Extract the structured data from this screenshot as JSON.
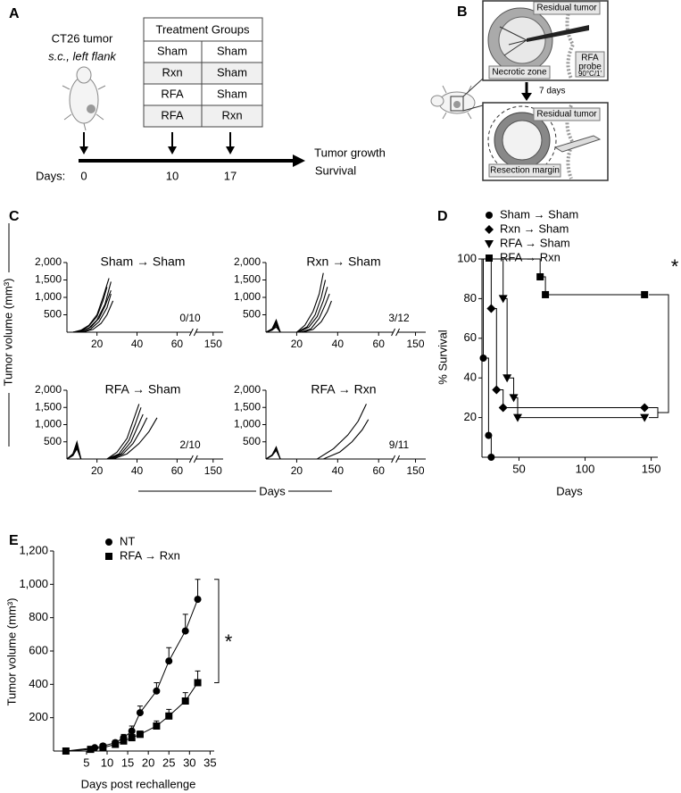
{
  "panel_a": {
    "label": "A",
    "tumor": "CT26 tumor",
    "site": "s.c., left flank",
    "table": {
      "header": "Treatment Groups",
      "rows": [
        [
          "Sham",
          "Sham"
        ],
        [
          "Rxn",
          "Sham"
        ],
        [
          "RFA",
          "Sham"
        ],
        [
          "RFA",
          "Rxn"
        ]
      ]
    },
    "days_label": "Days:",
    "days": [
      0,
      10,
      17
    ],
    "outcomes": [
      "Tumor growth",
      "Survival"
    ]
  },
  "panel_b": {
    "label": "B",
    "residual_top": "Residual tumor",
    "probe": "RFA",
    "probe_2": "probe",
    "probe_setting": "90°C/1'",
    "necrotic": "Necrotic zone",
    "interval": "7 days",
    "residual_bottom": "Residual tumor",
    "margin": "Resection margin"
  },
  "panel_c": {
    "label": "C",
    "ylabel": "Tumor volume (mm³)",
    "xlabel": "Days"
  },
  "panel_d": {
    "label": "D"
  },
  "panel_e": {
    "label": "E"
  },
  "chart_data": [
    {
      "type": "line",
      "title": "Sham → Sham",
      "annotation": "0/10",
      "xlim": [
        5,
        155
      ],
      "axis_break": [
        68,
        140
      ],
      "xticks": [
        20,
        40,
        60,
        150
      ],
      "ylim": [
        0,
        2000
      ],
      "yticks": [
        500,
        {
          "value": 1000,
          "label": "1,000"
        },
        {
          "value": 1500,
          "label": "1,500"
        },
        {
          "value": 2000,
          "label": "2,000"
        }
      ],
      "series": [
        {
          "color": "#000",
          "x": [
            8,
            12,
            16,
            20,
            23,
            26
          ],
          "values": [
            0,
            60,
            200,
            500,
            1000,
            1550
          ]
        },
        {
          "color": "#000",
          "x": [
            8,
            12,
            16,
            20,
            23,
            25
          ],
          "values": [
            0,
            40,
            180,
            450,
            900,
            1300
          ]
        },
        {
          "color": "#000",
          "x": [
            8,
            12,
            16,
            20,
            24,
            27
          ],
          "values": [
            0,
            30,
            120,
            350,
            800,
            1450
          ]
        },
        {
          "color": "#000",
          "x": [
            8,
            13,
            17,
            21,
            24,
            27
          ],
          "values": [
            0,
            50,
            150,
            400,
            750,
            1200
          ]
        },
        {
          "color": "#000",
          "x": [
            8,
            13,
            17,
            21,
            25,
            27
          ],
          "values": [
            0,
            20,
            100,
            300,
            700,
            1100
          ]
        },
        {
          "color": "#000",
          "x": [
            10,
            14,
            18,
            22,
            25,
            28
          ],
          "values": [
            0,
            20,
            80,
            250,
            500,
            900
          ]
        }
      ]
    },
    {
      "type": "line",
      "title": "Rxn → Sham",
      "annotation": "3/12",
      "xlim": [
        5,
        155
      ],
      "axis_break": [
        68,
        140
      ],
      "xticks": [
        20,
        40,
        60,
        150
      ],
      "ylim": [
        0,
        2000
      ],
      "yticks": [
        500,
        {
          "value": 1000,
          "label": "1,000"
        },
        {
          "value": 1500,
          "label": "1,500"
        },
        {
          "value": 2000,
          "label": "2,000"
        }
      ],
      "series": [
        {
          "color": "#000",
          "x": [
            5,
            8,
            10,
            12,
            20,
            24,
            28,
            31,
            33
          ],
          "values": [
            0,
            100,
            350,
            0,
            0,
            200,
            600,
            1100,
            1700
          ]
        },
        {
          "color": "#000",
          "x": [
            5,
            8,
            10,
            12,
            20,
            25,
            29,
            32,
            34
          ],
          "values": [
            0,
            80,
            300,
            0,
            0,
            150,
            500,
            1000,
            1500
          ]
        },
        {
          "color": "#000",
          "x": [
            5,
            8,
            10,
            12,
            21,
            26,
            30,
            33,
            35
          ],
          "values": [
            0,
            80,
            250,
            0,
            0,
            150,
            450,
            900,
            1300
          ]
        },
        {
          "color": "#000",
          "x": [
            5,
            8,
            10,
            12,
            22,
            27,
            31,
            34,
            36
          ],
          "values": [
            0,
            60,
            200,
            0,
            0,
            100,
            400,
            800,
            1100
          ]
        },
        {
          "color": "#000",
          "x": [
            5,
            8,
            10,
            12,
            23,
            28,
            32,
            35,
            37
          ],
          "values": [
            0,
            60,
            150,
            0,
            0,
            80,
            300,
            600,
            900
          ]
        }
      ]
    },
    {
      "type": "line",
      "title": "RFA → Sham",
      "annotation": "2/10",
      "xlim": [
        5,
        155
      ],
      "axis_break": [
        68,
        140
      ],
      "xticks": [
        20,
        40,
        60,
        150
      ],
      "ylim": [
        0,
        2000
      ],
      "yticks": [
        500,
        {
          "value": 1000,
          "label": "1,000"
        },
        {
          "value": 1500,
          "label": "1,500"
        },
        {
          "value": 2000,
          "label": "2,000"
        }
      ],
      "series": [
        {
          "color": "#000",
          "x": [
            5,
            8,
            10,
            12,
            25,
            30,
            35,
            38,
            41
          ],
          "values": [
            0,
            150,
            500,
            0,
            0,
            200,
            600,
            1100,
            1600
          ]
        },
        {
          "color": "#000",
          "x": [
            5,
            8,
            10,
            12,
            25,
            31,
            36,
            39,
            42
          ],
          "values": [
            0,
            150,
            450,
            0,
            0,
            150,
            550,
            1000,
            1500
          ]
        },
        {
          "color": "#000",
          "x": [
            5,
            8,
            10,
            12,
            26,
            32,
            37,
            40,
            43
          ],
          "values": [
            0,
            120,
            400,
            0,
            0,
            150,
            500,
            900,
            1300
          ]
        },
        {
          "color": "#000",
          "x": [
            5,
            8,
            10,
            12,
            27,
            33,
            38,
            42,
            45
          ],
          "values": [
            0,
            100,
            350,
            0,
            0,
            150,
            450,
            850,
            1200
          ]
        },
        {
          "color": "#000",
          "x": [
            5,
            8,
            10,
            12,
            28,
            35,
            41,
            46,
            50
          ],
          "values": [
            0,
            100,
            300,
            0,
            0,
            150,
            450,
            800,
            1200
          ]
        }
      ]
    },
    {
      "type": "line",
      "title": "RFA → Rxn",
      "annotation": "9/11",
      "xlim": [
        5,
        155
      ],
      "axis_break": [
        68,
        140
      ],
      "xticks": [
        20,
        40,
        60,
        150
      ],
      "ylim": [
        0,
        2000
      ],
      "yticks": [
        500,
        {
          "value": 1000,
          "label": "1,000"
        },
        {
          "value": 1500,
          "label": "1,500"
        },
        {
          "value": 2000,
          "label": "2,000"
        }
      ],
      "series": [
        {
          "color": "#000",
          "x": [
            5,
            8,
            10,
            12,
            30,
            38,
            45,
            50,
            54
          ],
          "values": [
            0,
            120,
            350,
            0,
            0,
            300,
            700,
            1100,
            1600
          ]
        },
        {
          "color": "#000",
          "x": [
            5,
            8,
            10,
            12,
            33,
            41,
            47,
            52,
            55
          ],
          "values": [
            0,
            100,
            300,
            0,
            0,
            200,
            500,
            850,
            1150
          ]
        },
        {
          "color": "#000",
          "x": [
            5,
            8,
            10,
            12,
            40
          ],
          "values": [
            0,
            100,
            250,
            0,
            0
          ]
        }
      ]
    },
    {
      "type": "step",
      "ylabel": "% Survival",
      "xlabel": "Days",
      "annotation": "*",
      "legend": "upper right",
      "xlim": [
        22,
        155
      ],
      "xticks": [
        50,
        100,
        150
      ],
      "ylim": [
        0,
        100
      ],
      "yticks": [
        20,
        40,
        60,
        80,
        100
      ],
      "series": [
        {
          "name": "Sham → Sham",
          "marker": "circle",
          "color": "#000",
          "x": [
            23,
            27,
            29
          ],
          "values": [
            50,
            11,
            0
          ]
        },
        {
          "name": "Rxn → Sham",
          "marker": "diamond",
          "color": "#000",
          "x": [
            29,
            33,
            38,
            145
          ],
          "values": [
            75,
            34,
            25,
            25
          ]
        },
        {
          "name": "RFA → Sham",
          "marker": "triangle-down",
          "color": "#000",
          "x": [
            38,
            41,
            46,
            49,
            145
          ],
          "values": [
            80,
            40,
            30,
            20,
            20
          ]
        },
        {
          "name": "RFA → Rxn",
          "marker": "square",
          "color": "#000",
          "x": [
            66,
            70,
            145
          ],
          "values": [
            91,
            82,
            82
          ]
        }
      ]
    },
    {
      "type": "errorbar_line",
      "xlabel": "Days post rechallenge",
      "ylabel": "Tumor volume (mm³)",
      "annotation": "*",
      "legend": "upper left",
      "xlim": [
        -3,
        36
      ],
      "xticks": [
        5,
        10,
        15,
        20,
        25,
        30,
        35
      ],
      "ylim": [
        0,
        1200
      ],
      "yticks": [
        200,
        400,
        600,
        800,
        {
          "value": 1000,
          "label": "1,000"
        },
        {
          "value": 1200,
          "label": "1,200"
        }
      ],
      "series": [
        {
          "name": "NT",
          "marker": "circle",
          "color": "#000",
          "x": [
            0,
            7,
            9,
            12,
            14,
            16,
            18,
            22,
            25,
            29,
            32
          ],
          "values": [
            0,
            20,
            30,
            50,
            80,
            120,
            230,
            360,
            540,
            720,
            910
          ],
          "errors": [
            0,
            10,
            15,
            15,
            20,
            30,
            40,
            50,
            80,
            100,
            120
          ]
        },
        {
          "name": "RFA → Rxn",
          "marker": "square",
          "color": "#000",
          "x": [
            0,
            6,
            9,
            12,
            14,
            16,
            18,
            22,
            25,
            29,
            32
          ],
          "values": [
            0,
            10,
            20,
            40,
            60,
            80,
            100,
            150,
            210,
            300,
            410
          ],
          "errors": [
            0,
            5,
            10,
            15,
            15,
            20,
            20,
            30,
            40,
            50,
            70
          ]
        }
      ]
    }
  ]
}
